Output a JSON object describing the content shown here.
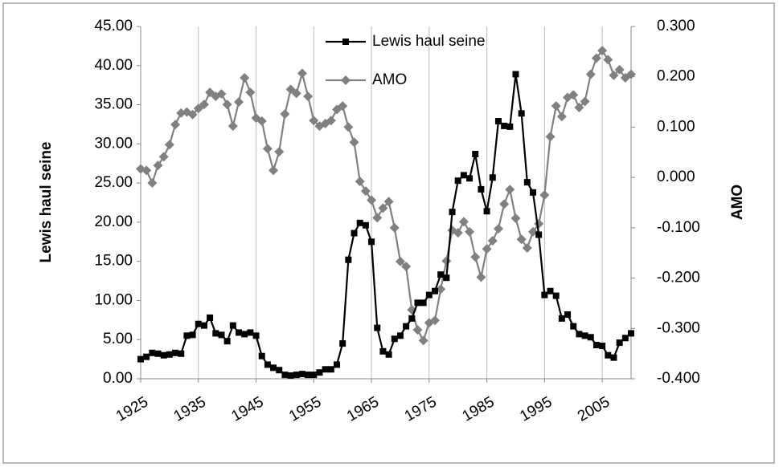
{
  "chart_data": {
    "type": "line",
    "x": [
      1925,
      1926,
      1927,
      1928,
      1929,
      1930,
      1931,
      1932,
      1933,
      1934,
      1935,
      1936,
      1937,
      1938,
      1939,
      1940,
      1941,
      1942,
      1943,
      1944,
      1945,
      1946,
      1947,
      1948,
      1949,
      1950,
      1951,
      1952,
      1953,
      1954,
      1955,
      1956,
      1957,
      1958,
      1959,
      1960,
      1961,
      1962,
      1963,
      1964,
      1965,
      1966,
      1967,
      1968,
      1969,
      1970,
      1971,
      1972,
      1973,
      1974,
      1975,
      1976,
      1977,
      1978,
      1979,
      1980,
      1981,
      1982,
      1983,
      1984,
      1985,
      1986,
      1987,
      1988,
      1989,
      1990,
      1991,
      1992,
      1993,
      1994,
      1995,
      1996,
      1997,
      1998,
      1999,
      2000,
      2001,
      2002,
      2003,
      2004,
      2005,
      2006,
      2007,
      2008,
      2009,
      2010
    ],
    "series": [
      {
        "name": "Lewis haul seine",
        "color": "#000000",
        "marker": "square",
        "values": [
          2.5,
          2.8,
          3.3,
          3.2,
          3.0,
          3.1,
          3.3,
          3.2,
          5.5,
          5.6,
          7.0,
          6.8,
          7.8,
          5.8,
          5.6,
          4.8,
          6.8,
          5.9,
          5.7,
          5.9,
          5.5,
          2.9,
          1.8,
          1.4,
          1.1,
          0.5,
          0.4,
          0.5,
          0.6,
          0.5,
          0.5,
          0.8,
          1.2,
          1.2,
          1.8,
          4.5,
          15.2,
          18.6,
          19.9,
          19.6,
          17.5,
          6.5,
          3.5,
          3.1,
          5.1,
          5.5,
          6.7,
          7.7,
          9.7,
          9.7,
          10.7,
          11.2,
          13.3,
          12.9,
          21.3,
          25.3,
          26.0,
          25.6,
          28.7,
          24.2,
          21.4,
          25.7,
          32.9,
          32.3,
          32.2,
          38.9,
          33.9,
          25.1,
          23.8,
          18.4,
          10.7,
          11.2,
          10.6,
          7.7,
          8.2,
          6.7,
          5.7,
          5.5,
          5.3,
          4.3,
          4.2,
          3.0,
          2.7,
          4.6,
          5.2,
          5.8
        ]
      },
      {
        "name": "AMO",
        "color": "#808080",
        "marker": "diamond",
        "axis": "y2",
        "values": [
          0.017,
          0.014,
          -0.011,
          0.024,
          0.041,
          0.065,
          0.105,
          0.128,
          0.13,
          0.125,
          0.137,
          0.145,
          0.169,
          0.161,
          0.166,
          0.145,
          0.102,
          0.15,
          0.198,
          0.169,
          0.118,
          0.112,
          0.057,
          0.014,
          0.051,
          0.126,
          0.175,
          0.167,
          0.207,
          0.161,
          0.113,
          0.102,
          0.107,
          0.113,
          0.135,
          0.142,
          0.1,
          0.07,
          -0.008,
          -0.027,
          -0.045,
          -0.08,
          -0.061,
          -0.048,
          -0.1,
          -0.167,
          -0.177,
          -0.263,
          -0.303,
          -0.324,
          -0.289,
          -0.284,
          -0.222,
          -0.166,
          -0.105,
          -0.11,
          -0.088,
          -0.108,
          -0.158,
          -0.198,
          -0.142,
          -0.126,
          -0.102,
          -0.053,
          -0.024,
          -0.081,
          -0.123,
          -0.14,
          -0.108,
          -0.092,
          -0.035,
          0.081,
          0.142,
          0.121,
          0.159,
          0.164,
          0.139,
          0.151,
          0.205,
          0.237,
          0.252,
          0.234,
          0.203,
          0.214,
          0.198,
          0.205
        ]
      }
    ],
    "y_label": "Lewis haul seine",
    "y2_label": "AMO",
    "xlim": [
      1925,
      2010
    ],
    "xticks": [
      1925,
      1935,
      1945,
      1955,
      1965,
      1975,
      1985,
      1995,
      2005
    ],
    "ylim": [
      0,
      45
    ],
    "yticks": [
      {
        "value": 0,
        "label": "0.00"
      },
      {
        "value": 5,
        "label": "5.00"
      },
      {
        "value": 10,
        "label": "10.00"
      },
      {
        "value": 15,
        "label": "15.00"
      },
      {
        "value": 20,
        "label": "20.00"
      },
      {
        "value": 25,
        "label": "25.00"
      },
      {
        "value": 30,
        "label": "30.00"
      },
      {
        "value": 35,
        "label": "35.00"
      },
      {
        "value": 40,
        "label": "40.00"
      },
      {
        "value": 45,
        "label": "45.00"
      }
    ],
    "y2lim": [
      -0.4,
      0.3
    ],
    "y2ticks": [
      {
        "value": -0.4,
        "label": "-0.400"
      },
      {
        "value": -0.3,
        "label": "-0.300"
      },
      {
        "value": -0.2,
        "label": "-0.200"
      },
      {
        "value": -0.1,
        "label": "-0.100"
      },
      {
        "value": 0,
        "label": "0.000"
      },
      {
        "value": 0.1,
        "label": "0.100"
      },
      {
        "value": 0.2,
        "label": "0.200"
      },
      {
        "value": 0.3,
        "label": "0.300"
      }
    ],
    "xgrid": true,
    "legend": "top"
  }
}
